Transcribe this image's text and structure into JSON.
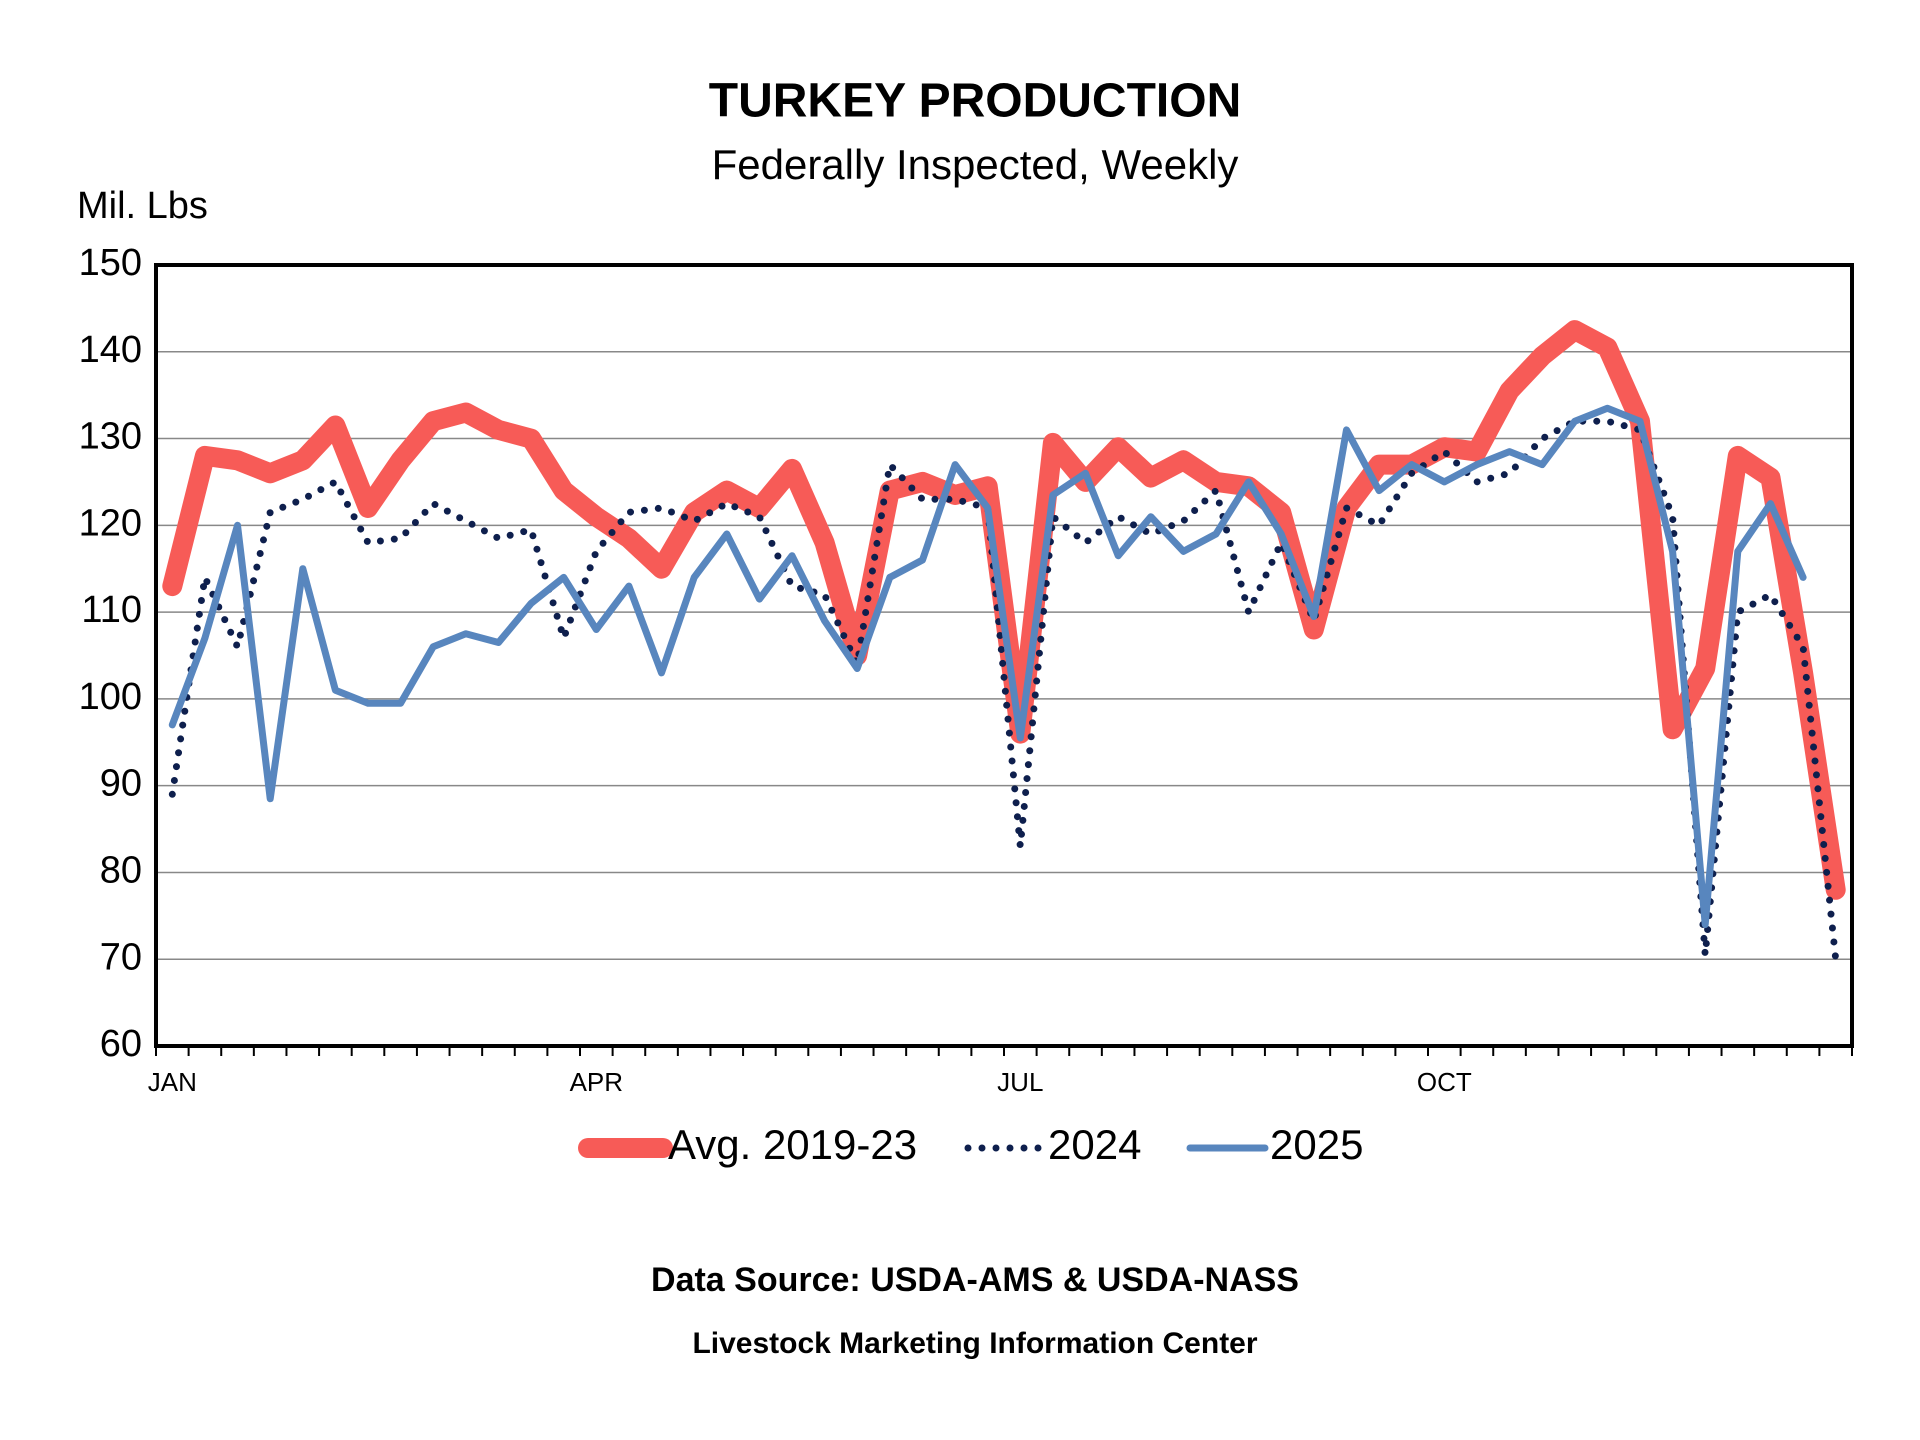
{
  "chart_data": {
    "type": "line",
    "title": "TURKEY PRODUCTION",
    "subtitle": "Federally Inspected, Weekly",
    "y_label": "Mil. Lbs",
    "source": "Data Source:  USDA-AMS & USDA-NASS",
    "credit": "Livestock Marketing Information Center",
    "categories": [
      "JAN",
      null,
      null,
      null,
      null,
      null,
      null,
      null,
      null,
      null,
      null,
      null,
      null,
      "APR",
      null,
      null,
      null,
      null,
      null,
      null,
      null,
      null,
      null,
      null,
      null,
      null,
      "JUL",
      null,
      null,
      null,
      null,
      null,
      null,
      null,
      null,
      null,
      null,
      null,
      null,
      "OCT",
      null,
      null,
      null,
      null,
      null,
      null,
      null,
      null,
      null,
      null,
      null,
      null
    ],
    "ylim": [
      60,
      150
    ],
    "yticks": [
      60,
      70,
      80,
      90,
      100,
      110,
      120,
      130,
      140,
      150
    ],
    "grid": true,
    "legend": "bottom",
    "series": [
      {
        "name": "Avg. 2019-23",
        "color": "#f75b57",
        "line_style": "solid",
        "values": [
          113,
          128,
          127.5,
          126,
          127.5,
          131.5,
          122,
          127.5,
          132,
          133,
          131,
          130,
          124,
          121,
          118.5,
          115,
          121.5,
          124,
          122,
          126.5,
          118,
          105,
          124,
          125,
          123.5,
          124.5,
          96,
          129.5,
          125,
          129,
          125.5,
          127.5,
          125,
          124.5,
          121.5,
          108,
          122,
          127,
          127,
          129,
          128.5,
          135.5,
          139.5,
          142.5,
          140.5,
          132,
          96.5,
          103.5,
          128,
          125.5,
          103,
          78
        ]
      },
      {
        "name": "2024",
        "color": "#0e1f4d",
        "line_style": "dotted",
        "values": [
          89,
          114,
          106,
          121.5,
          123,
          125,
          118,
          118.5,
          122.5,
          120.5,
          118.5,
          119.5,
          107,
          117,
          121.5,
          122,
          120.5,
          122.5,
          121,
          113,
          112,
          104,
          127,
          123,
          123,
          122,
          83,
          121,
          118,
          121,
          119,
          120.5,
          124,
          110,
          118,
          109,
          122,
          120,
          126,
          128.5,
          125,
          126,
          130,
          132,
          132,
          131,
          121,
          70.5,
          110,
          112,
          106,
          70
        ]
      },
      {
        "name": "2025",
        "color": "#5886be",
        "line_style": "solid",
        "values": [
          97,
          107,
          120,
          88.5,
          115,
          101,
          99.5,
          99.5,
          106,
          107.5,
          106.5,
          111,
          114,
          108,
          113,
          103,
          114,
          119,
          111.5,
          116.5,
          109,
          103.5,
          114,
          116,
          127,
          122,
          95.5,
          123.5,
          126,
          116.5,
          121,
          117,
          119,
          125,
          119,
          109.5,
          131,
          124,
          127,
          125,
          127,
          128.5,
          127,
          132,
          133.5,
          132,
          117,
          74,
          117,
          122.5,
          114,
          null
        ]
      }
    ]
  }
}
